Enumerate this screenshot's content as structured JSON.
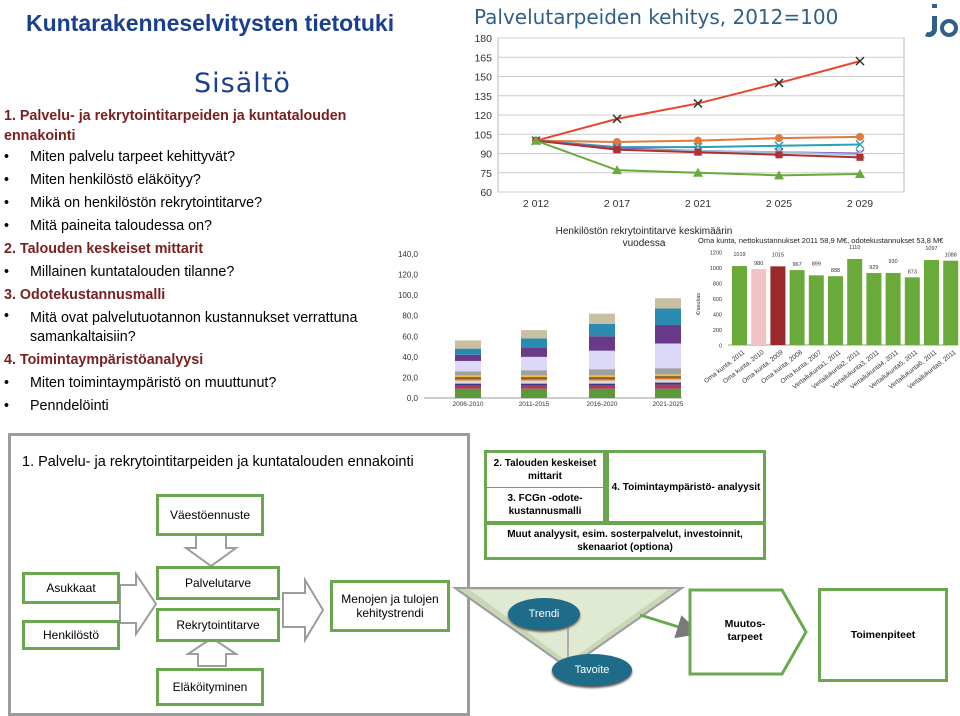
{
  "header": {
    "title": "Kuntarakenneselvitysten tietotuki"
  },
  "contents": {
    "heading": "Sisältö",
    "items": [
      {
        "kind": "sec",
        "text": "1. Palvelu- ja rekrytointitarpeiden ja kuntatalouden ennakointi"
      },
      {
        "kind": "item",
        "text": "Miten palvelu tarpeet kehittyvät?"
      },
      {
        "kind": "item",
        "text": "Miten henkilöstö eläköityy?"
      },
      {
        "kind": "item",
        "text": "Mikä on henkilöstön rekrytointitarve?"
      },
      {
        "kind": "item",
        "text": "Mitä paineita taloudessa on?"
      },
      {
        "kind": "sec",
        "text": "2. Talouden keskeiset mittarit"
      },
      {
        "kind": "item",
        "text": "Millainen kuntatalouden tilanne?"
      },
      {
        "kind": "sec",
        "text": "3. Odotekustannusmalli"
      },
      {
        "kind": "item",
        "text": "Mitä ovat palvelutuotannon kustannukset verrattuna samankaltaisiin?"
      },
      {
        "kind": "sec",
        "text": "4. Toimintaympäristöanalyysi"
      },
      {
        "kind": "item",
        "text": "Miten toimintaympäristö on muuttunut?"
      },
      {
        "kind": "item",
        "text": "Penndelöinti"
      }
    ]
  },
  "chart_data": [
    {
      "type": "line",
      "title": "Palvelutarpeiden kehitys, 2012=100",
      "x": [
        "2 012",
        "2 017",
        "2 021",
        "2 025",
        "2 029"
      ],
      "ylim": [
        60,
        180
      ],
      "yticks": [
        60,
        75,
        90,
        105,
        120,
        135,
        150,
        165,
        180
      ],
      "grid": true,
      "series": [
        {
          "color": "#e8462e",
          "marker": "x",
          "values": [
            100,
            117,
            129,
            145,
            162
          ]
        },
        {
          "color": "#e07b3a",
          "marker": "circle",
          "values": [
            100,
            99,
            100,
            102,
            103
          ]
        },
        {
          "color": "#2aa0b5",
          "marker": "x",
          "values": [
            100,
            95,
            95,
            96,
            97
          ]
        },
        {
          "color": "#7b60b0",
          "marker": "x",
          "values": [
            100,
            94,
            92,
            91,
            90
          ]
        },
        {
          "color": "#a0c0e0",
          "marker": "triangle",
          "values": [
            100,
            93,
            92,
            91,
            89
          ]
        },
        {
          "color": "#b03030",
          "marker": "square",
          "values": [
            100,
            93,
            91,
            89,
            87
          ]
        },
        {
          "color": "#6aaa3a",
          "marker": "triangle",
          "values": [
            100,
            77,
            75,
            73,
            74
          ]
        }
      ]
    },
    {
      "type": "bar",
      "title": "Henkilöstön rekrytointitarve keskimäärin vuodessa",
      "categories": [
        "2006-2010",
        "2011-2015",
        "2016-2020",
        "2021-2025"
      ],
      "ylim": [
        0,
        140
      ],
      "ytick_labels": [
        "0,0",
        "20,0",
        "40,0",
        "60,0",
        "80,0",
        "100,0",
        "120,0",
        "140,0"
      ],
      "stacked": true,
      "series": [
        {
          "color": "#5a9a3a",
          "values": [
            9,
            9,
            9,
            9
          ]
        },
        {
          "color": "#b03a5a",
          "values": [
            3,
            3,
            3,
            4
          ]
        },
        {
          "color": "#3a3a8a",
          "values": [
            2,
            2,
            2,
            2
          ]
        },
        {
          "color": "#d9d9d9",
          "values": [
            3,
            3,
            3,
            3
          ]
        },
        {
          "color": "#e07b2a",
          "values": [
            2,
            2,
            2,
            2
          ]
        },
        {
          "color": "#222222",
          "values": [
            1,
            1,
            1,
            1
          ]
        },
        {
          "color": "#f0c040",
          "values": [
            2,
            2,
            2,
            2
          ]
        },
        {
          "color": "#a0a0a0",
          "values": [
            4,
            5,
            6,
            6
          ]
        },
        {
          "color": "#dcd8f8",
          "values": [
            10,
            13,
            18,
            24
          ]
        },
        {
          "color": "#6a3a8a",
          "values": [
            6,
            9,
            14,
            18
          ]
        },
        {
          "color": "#2a8ab0",
          "values": [
            6,
            9,
            12,
            16
          ]
        },
        {
          "color": "#c8c0a0",
          "values": [
            8,
            8,
            10,
            10
          ]
        }
      ]
    },
    {
      "type": "bar",
      "title": "Oma kunta, nettokustannukset 2011 58,9 M€, odotekustannukset 53,8 M€",
      "ylabel": "€/asukas",
      "ylim": [
        0,
        1200
      ],
      "yticks": [
        0,
        200,
        400,
        600,
        800,
        1000,
        1200
      ],
      "categories": [
        "Oma kunta, 2011",
        "Oma kunta, 2010",
        "Oma kunta, 2009",
        "Oma kunta, 2008",
        "Oma kunta, 2007",
        "Vertailukunta1, 2011",
        "Vertailukunta2, 2011",
        "Vertailukunta3, 2011",
        "Vertailukunta4, 2011",
        "Vertailukunta5, 2011",
        "Vertailukunta6, 2011",
        "Vertailukunta9, 2011"
      ],
      "values": [
        1019,
        980,
        1015,
        967,
        899,
        888,
        1110,
        929,
        930,
        873,
        1097,
        1088
      ],
      "colors": [
        "#6aaa3a",
        "#f0c4c4",
        "#9a2a2a",
        "#6aaa3a",
        "#6aaa3a",
        "#6aaa3a",
        "#6aaa3a",
        "#6aaa3a",
        "#6aaa3a",
        "#6aaa3a",
        "#6aaa3a",
        "#6aaa3a"
      ]
    }
  ],
  "diagram": {
    "title": "1. Palvelu- ja rekrytointitarpeiden ja kuntatalouden ennakointi",
    "vaestoennuste": "Väestöennuste",
    "asukkaat": "Asukkaat",
    "henkilosto": "Henkilöstö",
    "palvelutarve": "Palvelutarve",
    "rekrytointitarve": "Rekrytointitarve",
    "elakoityminen": "Eläköityminen",
    "menojen": "Menojen ja tulojen kehitystrendi",
    "talouden": "2. Talouden keskeiset mittarit",
    "fcgn": "3. FCGn -odote- kustannusmalli",
    "toimintaymparisto": "4. Toimintaympäristö- analyysit",
    "muut": "Muut analyysit, esim. sosterpalvelut, investoinnit, skenaariot (optiona)",
    "trendi": "Trendi",
    "tavoite": "Tavoite",
    "muutostarpeet": "Muutos- tarpeet",
    "toimenpiteet": "Toimenpiteet"
  }
}
